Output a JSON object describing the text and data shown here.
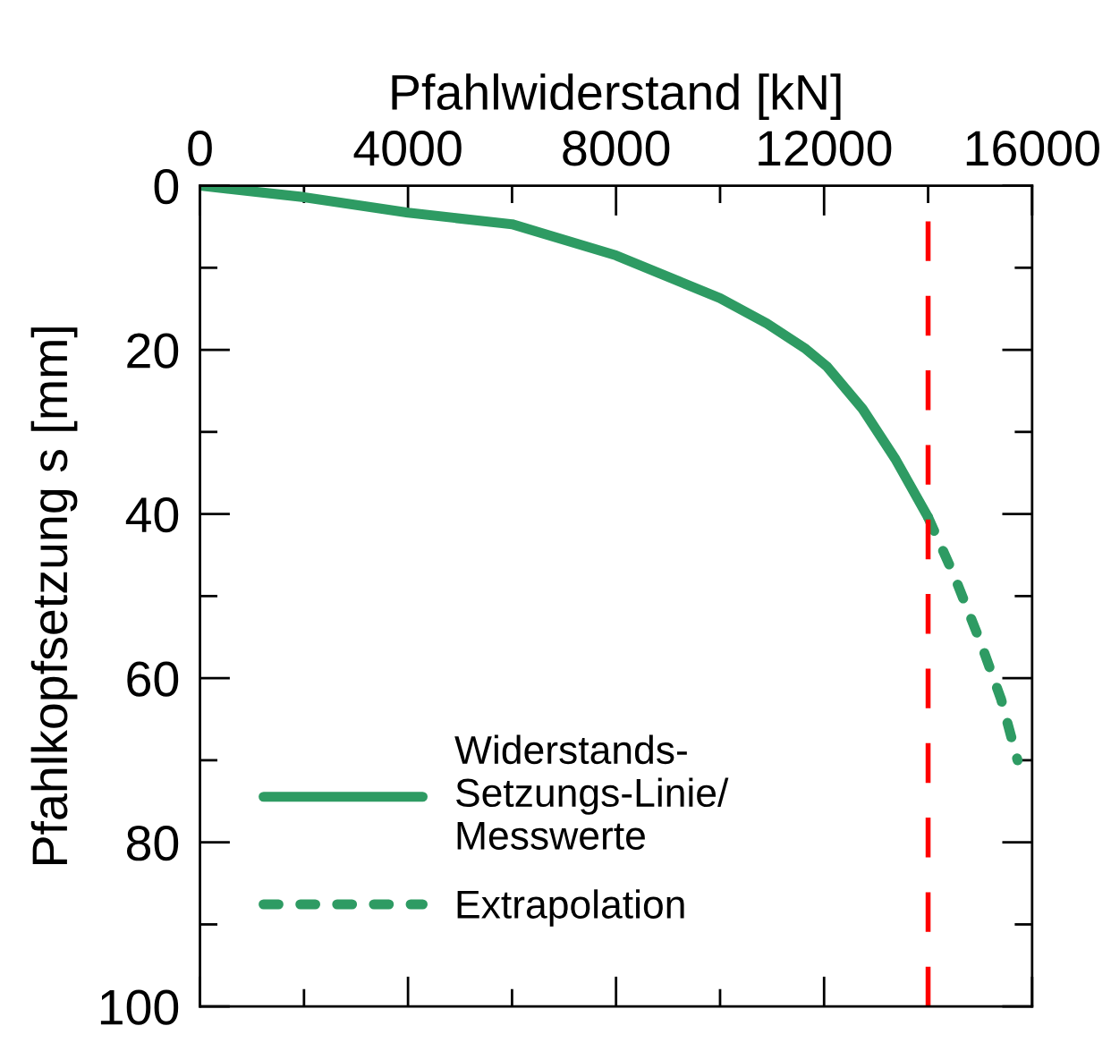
{
  "chart_data": {
    "type": "line",
    "xlabel": "Pfahlwiderstand [kN]",
    "ylabel": "Pfahlkopfsetzung s [mm]",
    "xlim": [
      0,
      16000
    ],
    "ylim": [
      100,
      0
    ],
    "xticks": [
      0,
      {
        "value": 2000,
        "label": null
      },
      4000,
      {
        "value": 6000,
        "label": null
      },
      8000,
      {
        "value": 10000,
        "label": null
      },
      12000,
      {
        "value": 14000,
        "label": null
      },
      16000
    ],
    "yticks": [
      0,
      {
        "value": 10,
        "label": null
      },
      20,
      {
        "value": 30,
        "label": null
      },
      40,
      {
        "value": 50,
        "label": null
      },
      60,
      {
        "value": 70,
        "label": null
      },
      80,
      {
        "value": 90,
        "label": null
      },
      100
    ],
    "series": [
      {
        "name": "Widerstands-\nSetzungs-Linie/\nMesswerte",
        "color": "#2e9b63",
        "line_style": "solid",
        "x": [
          0,
          2000,
          4000,
          6000,
          8000,
          10000,
          10900,
          11650,
          12050,
          12740,
          13370,
          14000
        ],
        "values": [
          0,
          1.4,
          3.3,
          4.7,
          8.5,
          13.7,
          16.8,
          19.9,
          22.0,
          27.2,
          33.3,
          40.4
        ]
      },
      {
        "name": "Extrapolation",
        "color": "#2e9b63",
        "line_style": "dotted",
        "x": [
          14000,
          14500,
          15000,
          15400,
          15720
        ],
        "values": [
          40.4,
          47.5,
          55.5,
          62.5,
          70
        ]
      }
    ],
    "ref_lines": [
      {
        "axis": "x",
        "value": 14000,
        "color": "#ff0000",
        "line_style": "dashed"
      }
    ],
    "grid": false,
    "legend": "bottom left",
    "marker": "none"
  }
}
